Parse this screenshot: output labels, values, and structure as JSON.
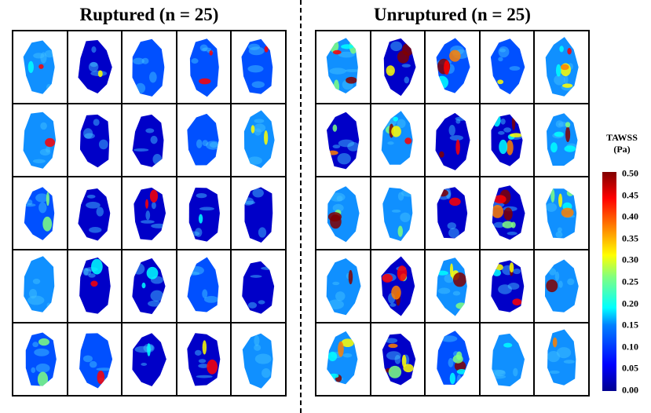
{
  "panels": [
    {
      "title": "Ruptured (n = 25)"
    },
    {
      "title": "Unruptured (n = 25)"
    }
  ],
  "colorbar": {
    "title_line1": "TAWSS",
    "title_line2": "(Pa)",
    "ticks": [
      "0.50",
      "0.45",
      "0.40",
      "0.35",
      "0.30",
      "0.25",
      "0.20",
      "0.15",
      "0.10",
      "0.05",
      "0.00"
    ],
    "range": [
      0,
      0.5
    ],
    "colormap": "jet",
    "colors": [
      "#00008f",
      "#0000ff",
      "#0080ff",
      "#00ffff",
      "#ffff00",
      "#ff0000",
      "#800000"
    ]
  }
}
